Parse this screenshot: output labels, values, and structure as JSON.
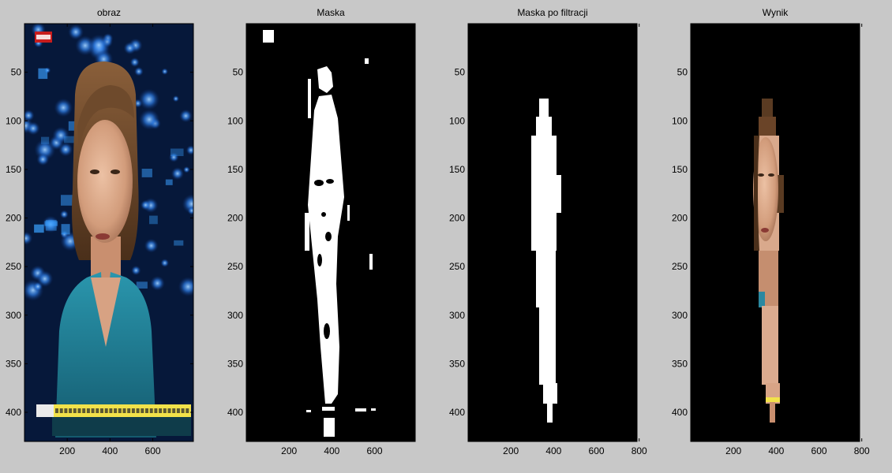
{
  "window": {
    "background": "#c8c8c8"
  },
  "chart_data": [
    {
      "type": "image",
      "title": "obraz",
      "xlim": [
        0,
        790
      ],
      "ylim": [
        430,
        0
      ],
      "xticks": [
        200,
        400,
        600
      ],
      "yticks": [
        50,
        100,
        150,
        200,
        250,
        300,
        350,
        400
      ],
      "content": "photo-news-anchor",
      "colors": {
        "background": "#06183a",
        "glow": "#2f7fe8",
        "skin": "#d9a583",
        "hair": "#6e4a2c",
        "top": "#1a7f96",
        "ticker": "#f2e24a"
      }
    },
    {
      "type": "image",
      "title": "Maska",
      "xlim": [
        0,
        790
      ],
      "ylim": [
        430,
        0
      ],
      "xticks": [
        200,
        400,
        600
      ],
      "yticks": [
        50,
        100,
        150,
        200,
        250,
        300,
        350,
        400
      ],
      "content": "binary-mask",
      "colors": {
        "background": "#000000",
        "foreground": "#ffffff"
      }
    },
    {
      "type": "image",
      "title": "Maska po filtracji",
      "xlim": [
        0,
        790
      ],
      "ylim": [
        430,
        0
      ],
      "xticks": [
        200,
        400,
        600,
        800
      ],
      "yticks": [
        50,
        100,
        150,
        200,
        250,
        300,
        350,
        400
      ],
      "content": "filtered-mask",
      "colors": {
        "background": "#000000",
        "foreground": "#ffffff"
      }
    },
    {
      "type": "image",
      "title": "Wynik",
      "xlim": [
        0,
        790
      ],
      "ylim": [
        430,
        0
      ],
      "xticks": [
        200,
        400,
        600,
        800
      ],
      "yticks": [
        50,
        100,
        150,
        200,
        250,
        300,
        350,
        400
      ],
      "content": "masked-result",
      "colors": {
        "background": "#000000",
        "skin": "#e0b095",
        "hair": "#5a3b22",
        "top": "#2b88a0",
        "ticker": "#f2e24a"
      }
    }
  ]
}
